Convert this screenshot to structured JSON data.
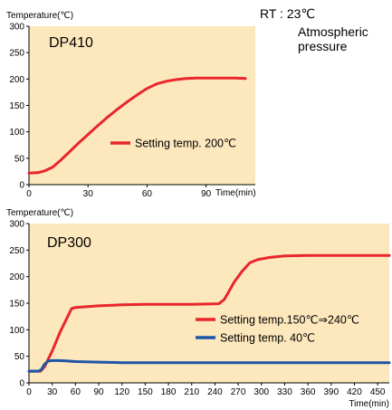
{
  "conditions": {
    "rt": "RT : 23℃",
    "pressure_line1": "Atmospheric",
    "pressure_line2": "pressure"
  },
  "colors": {
    "plot_background": "#fde8bd",
    "red": "#e8262b",
    "blue": "#1f55a6"
  },
  "chart_data": [
    {
      "type": "line",
      "title": "DP410",
      "ylabel": "Temperature(℃)",
      "xlabel": "Time(min)",
      "xlim": [
        0,
        115
      ],
      "ylim": [
        0,
        300
      ],
      "x_ticks": [
        "0",
        "30",
        "60",
        "90"
      ],
      "y_ticks": [
        "0",
        "50",
        "100",
        "150",
        "200",
        "250",
        "300"
      ],
      "grid": false,
      "legend_position": "lower-right",
      "series": [
        {
          "name": "Setting temp. 200℃",
          "color": "red",
          "x": [
            0,
            5,
            8,
            12,
            16,
            20,
            25,
            30,
            35,
            40,
            45,
            50,
            55,
            60,
            65,
            70,
            75,
            80,
            85,
            90,
            95,
            100,
            105,
            110
          ],
          "y": [
            22,
            23,
            26,
            33,
            46,
            60,
            78,
            95,
            112,
            128,
            143,
            157,
            170,
            182,
            191,
            196,
            199,
            201,
            202,
            202,
            202,
            202,
            202,
            201
          ]
        }
      ]
    },
    {
      "type": "line",
      "title": "DP300",
      "ylabel": "Temperature(℃)",
      "xlabel": "Time(min)",
      "xlim": [
        0,
        465
      ],
      "ylim": [
        0,
        300
      ],
      "x_ticks": [
        "0",
        "30",
        "60",
        "90",
        "120",
        "150",
        "180",
        "210",
        "240",
        "270",
        "300",
        "330",
        "360",
        "390",
        "420",
        "450"
      ],
      "y_ticks": [
        "0",
        "50",
        "100",
        "150",
        "200",
        "250",
        "300"
      ],
      "grid": false,
      "legend_position": "right",
      "series": [
        {
          "name": "Setting temp.150℃⇒240℃",
          "color": "red",
          "x": [
            0,
            15,
            20,
            30,
            40,
            50,
            55,
            60,
            90,
            120,
            150,
            180,
            210,
            245,
            252,
            258,
            265,
            275,
            285,
            295,
            310,
            330,
            360,
            390,
            420,
            465
          ],
          "y": [
            22,
            22,
            30,
            60,
            95,
            125,
            140,
            142,
            145,
            147,
            148,
            148,
            148,
            149,
            157,
            172,
            190,
            210,
            226,
            232,
            236,
            239,
            240,
            240,
            240,
            240
          ]
        },
        {
          "name": "Setting temp. 40℃",
          "color": "blue",
          "x": [
            0,
            12,
            16,
            20,
            25,
            30,
            40,
            50,
            60,
            90,
            120,
            180,
            240,
            300,
            360,
            420,
            465
          ],
          "y": [
            22,
            22,
            25,
            35,
            41,
            42,
            42,
            41,
            40,
            39,
            38,
            38,
            38,
            38,
            38,
            38,
            38
          ]
        }
      ]
    }
  ]
}
